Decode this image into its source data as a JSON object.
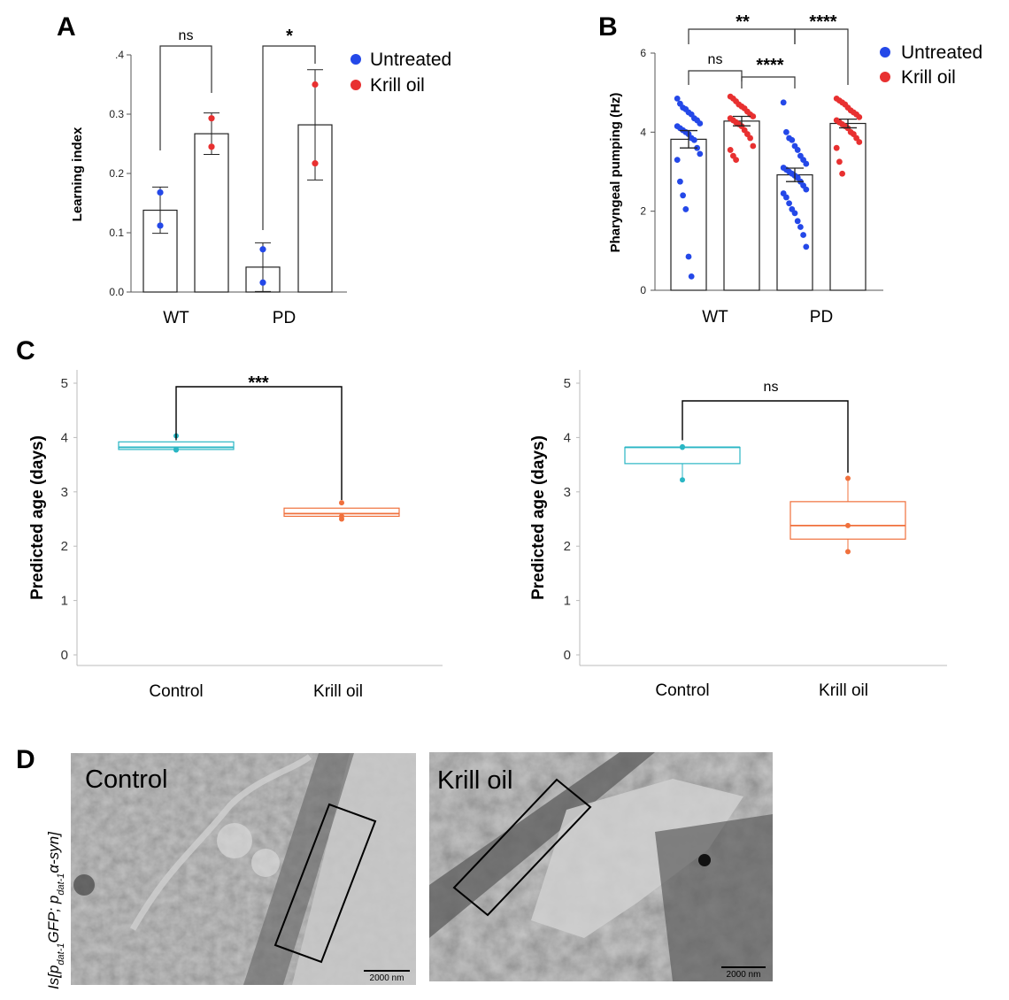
{
  "panels": {
    "a": "A",
    "b": "B",
    "c": "C",
    "d": "D"
  },
  "colors": {
    "untreated": "#2448e8",
    "krill": "#e83030",
    "control_box": "#2ab6c4",
    "krill_box": "#f0703c",
    "bracket": "#000000"
  },
  "legend": {
    "untreated": "Untreated",
    "krill": "Krill oil"
  },
  "chart_data": [
    {
      "id": "A",
      "type": "bar",
      "ylabel": "Learning index",
      "ylim": [
        0,
        0.4
      ],
      "yticks": [
        ".4",
        "0.3",
        "0.2",
        "0.1",
        "0.0"
      ],
      "categories": [
        "WT",
        "PD"
      ],
      "series": [
        {
          "name": "Untreated",
          "values": [
            0.138,
            0.042
          ],
          "errors": [
            0.039,
            0.041
          ],
          "points": [
            [
              0.168,
              0.112
            ],
            [
              0.072,
              0.016
            ]
          ]
        },
        {
          "name": "Krill oil",
          "values": [
            0.267,
            0.282
          ],
          "errors": [
            0.035,
            0.093
          ],
          "points": [
            [
              0.293,
              0.245
            ],
            [
              0.35,
              0.217
            ]
          ]
        }
      ],
      "significance": [
        {
          "label": "ns"
        },
        {
          "label": "*"
        }
      ]
    },
    {
      "id": "B",
      "type": "bar",
      "ylabel": "Pharyngeal pumping (Hz)",
      "ylim": [
        0,
        6
      ],
      "yticks": [
        "6",
        "4",
        "2",
        "0"
      ],
      "categories": [
        "WT",
        "PD"
      ],
      "series": [
        {
          "name": "Untreated",
          "values": [
            3.82,
            2.92
          ],
          "errors": [
            0.22,
            0.17
          ],
          "points": [
            [
              4.85,
              4.72,
              4.62,
              4.58,
              4.5,
              4.45,
              4.35,
              4.3,
              4.22,
              4.15,
              4.1,
              4.05,
              4.0,
              3.95,
              3.85,
              3.8,
              3.6,
              3.45,
              3.3,
              2.75,
              2.4,
              2.05,
              0.85,
              0.35
            ],
            [
              4.75,
              4.0,
              3.85,
              3.8,
              3.65,
              3.55,
              3.4,
              3.3,
              3.2,
              3.1,
              3.05,
              3.0,
              2.95,
              2.9,
              2.85,
              2.75,
              2.65,
              2.55,
              2.45,
              2.35,
              2.2,
              2.05,
              1.95,
              1.75,
              1.6,
              1.4,
              1.1
            ]
          ]
        },
        {
          "name": "Krill oil",
          "values": [
            4.28,
            4.22
          ],
          "errors": [
            0.12,
            0.11
          ],
          "points": [
            [
              4.9,
              4.85,
              4.78,
              4.7,
              4.65,
              4.6,
              4.52,
              4.45,
              4.4,
              4.35,
              4.3,
              4.25,
              4.2,
              4.15,
              4.05,
              3.95,
              3.85,
              3.65,
              3.55,
              3.4,
              3.3
            ],
            [
              4.85,
              4.8,
              4.75,
              4.7,
              4.62,
              4.55,
              4.5,
              4.45,
              4.38,
              4.3,
              4.25,
              4.2,
              4.15,
              4.1,
              4.0,
              3.95,
              3.85,
              3.75,
              3.6,
              3.25,
              2.95
            ]
          ]
        }
      ],
      "significance": [
        {
          "label": "ns"
        },
        {
          "label": "****"
        },
        {
          "label": "**"
        },
        {
          "label": "****"
        }
      ]
    },
    {
      "id": "C-left",
      "type": "box",
      "ylabel": "Predicted age (days)",
      "ylim": [
        0,
        5
      ],
      "yticks": [
        "5",
        "4",
        "3",
        "2",
        "1",
        "0"
      ],
      "categories": [
        "Control",
        "Krill oil"
      ],
      "boxes": [
        {
          "q1": 3.78,
          "median": 3.82,
          "q3": 3.92,
          "min": 3.78,
          "max": 3.92,
          "points": [
            4.03,
            3.78,
            3.77
          ]
        },
        {
          "q1": 2.55,
          "median": 2.6,
          "q3": 2.7,
          "min": 2.55,
          "max": 2.7,
          "points": [
            2.8,
            2.55,
            2.5
          ]
        }
      ],
      "significance": [
        {
          "label": "***"
        }
      ]
    },
    {
      "id": "C-right",
      "type": "box",
      "ylabel": "Predicted age (days)",
      "ylim": [
        0,
        5
      ],
      "yticks": [
        "5",
        "4",
        "3",
        "2",
        "1",
        "0"
      ],
      "categories": [
        "Control",
        "Krill oil"
      ],
      "boxes": [
        {
          "q1": 3.52,
          "median": 3.82,
          "q3": 3.82,
          "min": 3.22,
          "max": 3.82,
          "points": [
            3.83,
            3.82,
            3.22
          ]
        },
        {
          "q1": 2.13,
          "median": 2.38,
          "q3": 2.82,
          "min": 1.9,
          "max": 3.25,
          "points": [
            3.25,
            2.38,
            1.9
          ]
        }
      ],
      "significance": [
        {
          "label": "ns"
        }
      ]
    }
  ],
  "panel_d": {
    "rotated_label_parts": [
      "Is[p",
      "dat-1",
      "GFP; p",
      "dat-1",
      "α-syn]"
    ],
    "images": [
      {
        "label": "Control",
        "scalebar": "2000 nm"
      },
      {
        "label": "Krill oil",
        "scalebar": "2000 nm"
      }
    ]
  }
}
